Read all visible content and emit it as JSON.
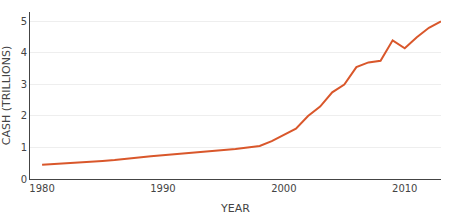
{
  "chart_data": {
    "type": "line",
    "xlabel": "YEAR",
    "ylabel": "CASH (TRILLIONS)",
    "x": [
      1980,
      1981,
      1982,
      1983,
      1984,
      1985,
      1986,
      1987,
      1988,
      1989,
      1990,
      1991,
      1992,
      1993,
      1994,
      1995,
      1996,
      1997,
      1998,
      1999,
      2000,
      2001,
      2002,
      2003,
      2004,
      2005,
      2006,
      2007,
      2008,
      2009,
      2010,
      2011,
      2012,
      2013
    ],
    "values": [
      0.45,
      0.47,
      0.5,
      0.52,
      0.53,
      0.57,
      0.6,
      0.65,
      0.68,
      0.72,
      0.75,
      0.78,
      0.82,
      0.85,
      0.88,
      0.92,
      0.95,
      1.0,
      1.05,
      1.2,
      1.4,
      1.6,
      2.0,
      2.3,
      2.75,
      3.0,
      3.55,
      3.7,
      3.75,
      4.4,
      4.15,
      4.5,
      4.8,
      5.0
    ],
    "color": "#d9572b",
    "xlim": [
      1979,
      2013
    ],
    "xticks": [
      1980,
      1990,
      2000,
      2010
    ],
    "ylim": [
      0,
      5.3
    ],
    "yticks": [
      0,
      1,
      2,
      3,
      4,
      5
    ],
    "grid": "y"
  }
}
